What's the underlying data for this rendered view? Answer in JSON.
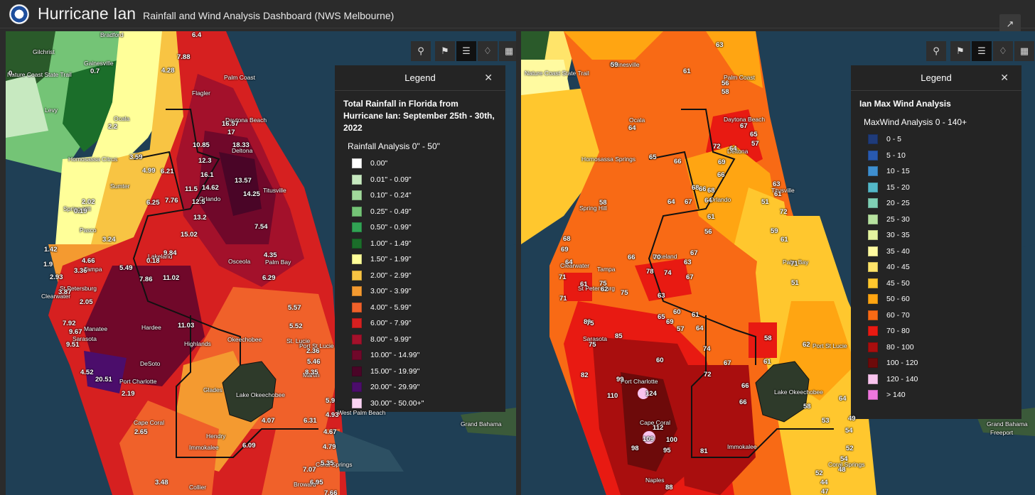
{
  "header": {
    "title": "Hurricane Ian",
    "subtitle": "Rainfall and Wind Analysis Dashboard (NWS Melbourne)"
  },
  "colors": {
    "ocean": "#1f3f55",
    "panel_bg": "#242424",
    "header_bg": "#2b2b2b"
  },
  "left_map": {
    "legend": {
      "header": "Legend",
      "title": "Total Rainfall in Florida from Hurricane Ian: September 25th - 30th, 2022",
      "subtitle": "Rainfall Analysis 0\" - 50\"",
      "items": [
        {
          "label": "0.00\"",
          "color": "#ffffff"
        },
        {
          "label": "0.01\" - 0.09\"",
          "color": "#c7e9c0"
        },
        {
          "label": "0.10\" - 0.24\"",
          "color": "#a1d99b"
        },
        {
          "label": "0.25\" - 0.49\"",
          "color": "#74c476"
        },
        {
          "label": "0.50\" - 0.99\"",
          "color": "#31a354"
        },
        {
          "label": "1.00\" - 1.49\"",
          "color": "#1b6e2a"
        },
        {
          "label": "1.50\" - 1.99\"",
          "color": "#ffff99"
        },
        {
          "label": "2.00\" - 2.99\"",
          "color": "#f8c443"
        },
        {
          "label": "3.00\" - 3.99\"",
          "color": "#f49a30"
        },
        {
          "label": "4.00\" - 5.99\"",
          "color": "#f0612a"
        },
        {
          "label": "6.00\" - 7.99\"",
          "color": "#d62020"
        },
        {
          "label": "8.00\" - 9.99\"",
          "color": "#a3112b"
        },
        {
          "label": "10.00\" - 14.99\"",
          "color": "#70082a"
        },
        {
          "label": "15.00\" - 19.99\"",
          "color": "#4a0527"
        },
        {
          "label": "20.00\" - 29.99\"",
          "color": "#4b0d6b"
        },
        {
          "label": "30.00\" - 50.00+\"",
          "color": "#fbd3f3"
        }
      ]
    },
    "places": [
      "Bradford",
      "Gilchrist",
      "Gainesville",
      "Nature Coast State Trail",
      "Levy",
      "Palm Coast",
      "Flagler",
      "Ocala",
      "Daytona Beach",
      "Deltona",
      "Homosassa Citrus",
      "Sumter",
      "Orlando",
      "Titusville",
      "Spring Hill",
      "Pasco",
      "Lakeland",
      "Osceola",
      "Palm Bay",
      "St Petersburg",
      "Clearwater",
      "Tampa",
      "Manatee",
      "Sarasota",
      "Hardee",
      "Highlands",
      "Okeechobee",
      "Port St Lucie",
      "St. Lucie",
      "DeSoto",
      "Port Charlotte",
      "Martin",
      "Glades",
      "Lake Okeechobee",
      "West Palm Beach",
      "Cape Coral",
      "Hendry",
      "Immokalee",
      "Coral Springs",
      "Broward",
      "Collier",
      "Grand Bahama"
    ],
    "values": [
      "6.4",
      "7.88",
      "4.28",
      "0.",
      "0.7",
      "16.57",
      "17",
      "18.33",
      "2.2",
      "10.85",
      "12.3",
      "3.59",
      "4.99",
      "6.21",
      "16.1",
      "11.5",
      "14.62",
      "13.57",
      "14.25",
      "6.25",
      "7.76",
      "12.5",
      "2.02",
      "0.19",
      "13.2",
      "7.54",
      "3.24",
      "15.02",
      "1.42",
      "9.84",
      "4.35",
      "4.66",
      "3.36",
      "5.49",
      "0.18",
      "1.9",
      "2.93",
      "7.86",
      "11.02",
      "6.29",
      "3.87",
      "2.05",
      "5.57",
      "7.92",
      "9.67",
      "11.03",
      "5.52",
      "9.51",
      "2.36",
      "5.46",
      "4.52",
      "20.51",
      "8.35",
      "2.19",
      "5.9",
      "4.07",
      "6.31",
      "4.93",
      "2.65",
      "4.67",
      "6.09",
      "4.79",
      "5.35",
      "7.07",
      "6.95",
      "3.48",
      "7.66"
    ]
  },
  "right_map": {
    "legend": {
      "header": "Legend",
      "title": "Ian Max Wind Analysis",
      "subtitle": "MaxWind Analysis 0 - 140+",
      "items": [
        {
          "label": "0 - 5",
          "color": "#1f3b7a"
        },
        {
          "label": "5 - 10",
          "color": "#2859b0"
        },
        {
          "label": "10 - 15",
          "color": "#3e8fd0"
        },
        {
          "label": "15 - 20",
          "color": "#53b8c8"
        },
        {
          "label": "20 - 25",
          "color": "#7fcfb4"
        },
        {
          "label": "25 - 30",
          "color": "#b7e2a0"
        },
        {
          "label": "30 - 35",
          "color": "#e4f3a0"
        },
        {
          "label": "35 - 40",
          "color": "#fffaa0"
        },
        {
          "label": "40 - 45",
          "color": "#ffe46a"
        },
        {
          "label": "45 - 50",
          "color": "#ffc72e"
        },
        {
          "label": "50 - 60",
          "color": "#ffa512"
        },
        {
          "label": "60 - 70",
          "color": "#f86a15"
        },
        {
          "label": "70 - 80",
          "color": "#e81a12"
        },
        {
          "label": "80 - 100",
          "color": "#a90e0e"
        },
        {
          "label": "100 - 120",
          "color": "#6d0a0a"
        },
        {
          "label": "120 - 140",
          "color": "#f9c4ee"
        },
        {
          "label": "> 140",
          "color": "#ee77dd"
        }
      ]
    },
    "places": [
      "Gainesville",
      "Nature Coast State Trail",
      "Palm Coast",
      "Ocala",
      "Daytona Beach",
      "Deltona",
      "Homosassa Springs",
      "Orlando",
      "Titusville",
      "Spring Hill",
      "Lakeland",
      "Clearwater",
      "Tampa",
      "St Petersburg",
      "Palm Bay",
      "Sarasota",
      "Port St Lucie",
      "Port Charlotte",
      "Lake Okeechobee",
      "Cape Coral",
      "Immokalee",
      "Coral Springs",
      "Naples",
      "Grand Bahama",
      "Freeport"
    ],
    "values": [
      "63",
      "59",
      "61",
      "56",
      "58",
      "64",
      "67",
      "65",
      "72",
      "57",
      "64",
      "65",
      "66",
      "69",
      "66",
      "68",
      "66",
      "63",
      "61",
      "68",
      "64",
      "64",
      "67",
      "51",
      "72",
      "61",
      "58",
      "59",
      "56",
      "68",
      "61",
      "69",
      "66",
      "70",
      "64",
      "67",
      "63",
      "71",
      "78",
      "74",
      "71",
      "61",
      "67",
      "75",
      "71",
      "51",
      "62",
      "75",
      "63",
      "60",
      "65",
      "80",
      "69",
      "61",
      "64",
      "75",
      "85",
      "57",
      "58",
      "75",
      "62",
      "74",
      "61",
      "82",
      "99",
      "60",
      "72",
      "67",
      "66",
      "110",
      "124",
      "66",
      "64",
      "58",
      "53",
      "49",
      "54",
      "112",
      "109",
      "100",
      "81",
      "95",
      "52",
      "54",
      "48",
      "88",
      "98",
      "52",
      "44",
      "47",
      "49"
    ]
  }
}
